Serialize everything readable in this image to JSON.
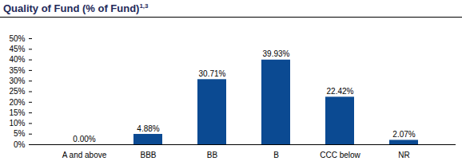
{
  "chart_data": {
    "type": "bar",
    "title": "Quality of Fund (% of Fund)",
    "annotations": [
      "1,3"
    ],
    "categories": [
      "A and above",
      "BBB",
      "BB",
      "B",
      "CCC below",
      "NR"
    ],
    "values": [
      0,
      4.88,
      30.71,
      39.93,
      22.42,
      2.07
    ],
    "value_labels": [
      "0.00%",
      "4.88%",
      "30.71%",
      "39.93%",
      "22.42%",
      "2.07%"
    ],
    "color": "#0b4a92",
    "ylim": [
      0,
      50
    ],
    "yticks": [
      {
        "value": 0,
        "label": "0%"
      },
      {
        "value": 5,
        "label": "5%"
      },
      {
        "value": 10,
        "label": "10%"
      },
      {
        "value": 15,
        "label": "15%"
      },
      {
        "value": 20,
        "label": "20%"
      },
      {
        "value": 25,
        "label": "25%"
      },
      {
        "value": 30,
        "label": "30%"
      },
      {
        "value": 35,
        "label": "35%"
      },
      {
        "value": 40,
        "label": "40%"
      },
      {
        "value": 45,
        "label": "45%"
      },
      {
        "value": 50,
        "label": "50%"
      }
    ],
    "grid": false,
    "data_labels": true
  }
}
